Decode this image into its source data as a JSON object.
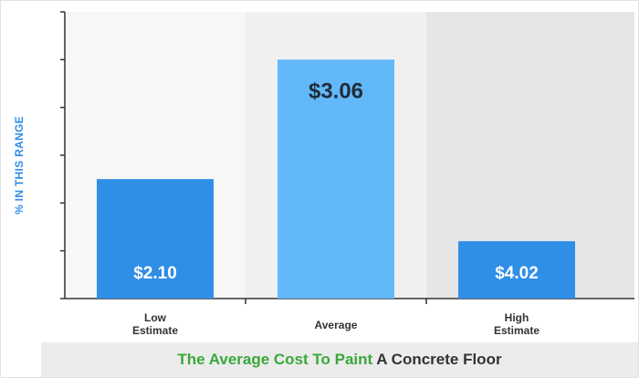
{
  "chart_data": {
    "type": "bar",
    "ylabel": "% IN THIS RANGE",
    "categories": [
      {
        "lines": [
          "Low",
          "Estimate"
        ]
      },
      {
        "lines": [
          "Average"
        ]
      },
      {
        "lines": [
          "High",
          "Estimate"
        ]
      }
    ],
    "values": [
      2.5,
      5,
      1.2
    ],
    "data_labels": [
      "$2.10",
      "$3.06",
      "$4.02"
    ],
    "ylim": [
      0,
      6
    ],
    "ytick_count": 7,
    "grid": false,
    "title_parts": [
      {
        "text": "The Average Cost To Paint",
        "color": "#3aa83a"
      },
      {
        "text": " A Concrete Floor",
        "color": "#333333"
      }
    ],
    "colors": {
      "low": "#2f8ee6",
      "average": "#63b8f9",
      "high": "#2f8ee6",
      "axis": "#333333",
      "band_light": "#f7f7f7",
      "band_mid": "#f0f0f0",
      "band_dark": "#e6e6e6"
    }
  }
}
